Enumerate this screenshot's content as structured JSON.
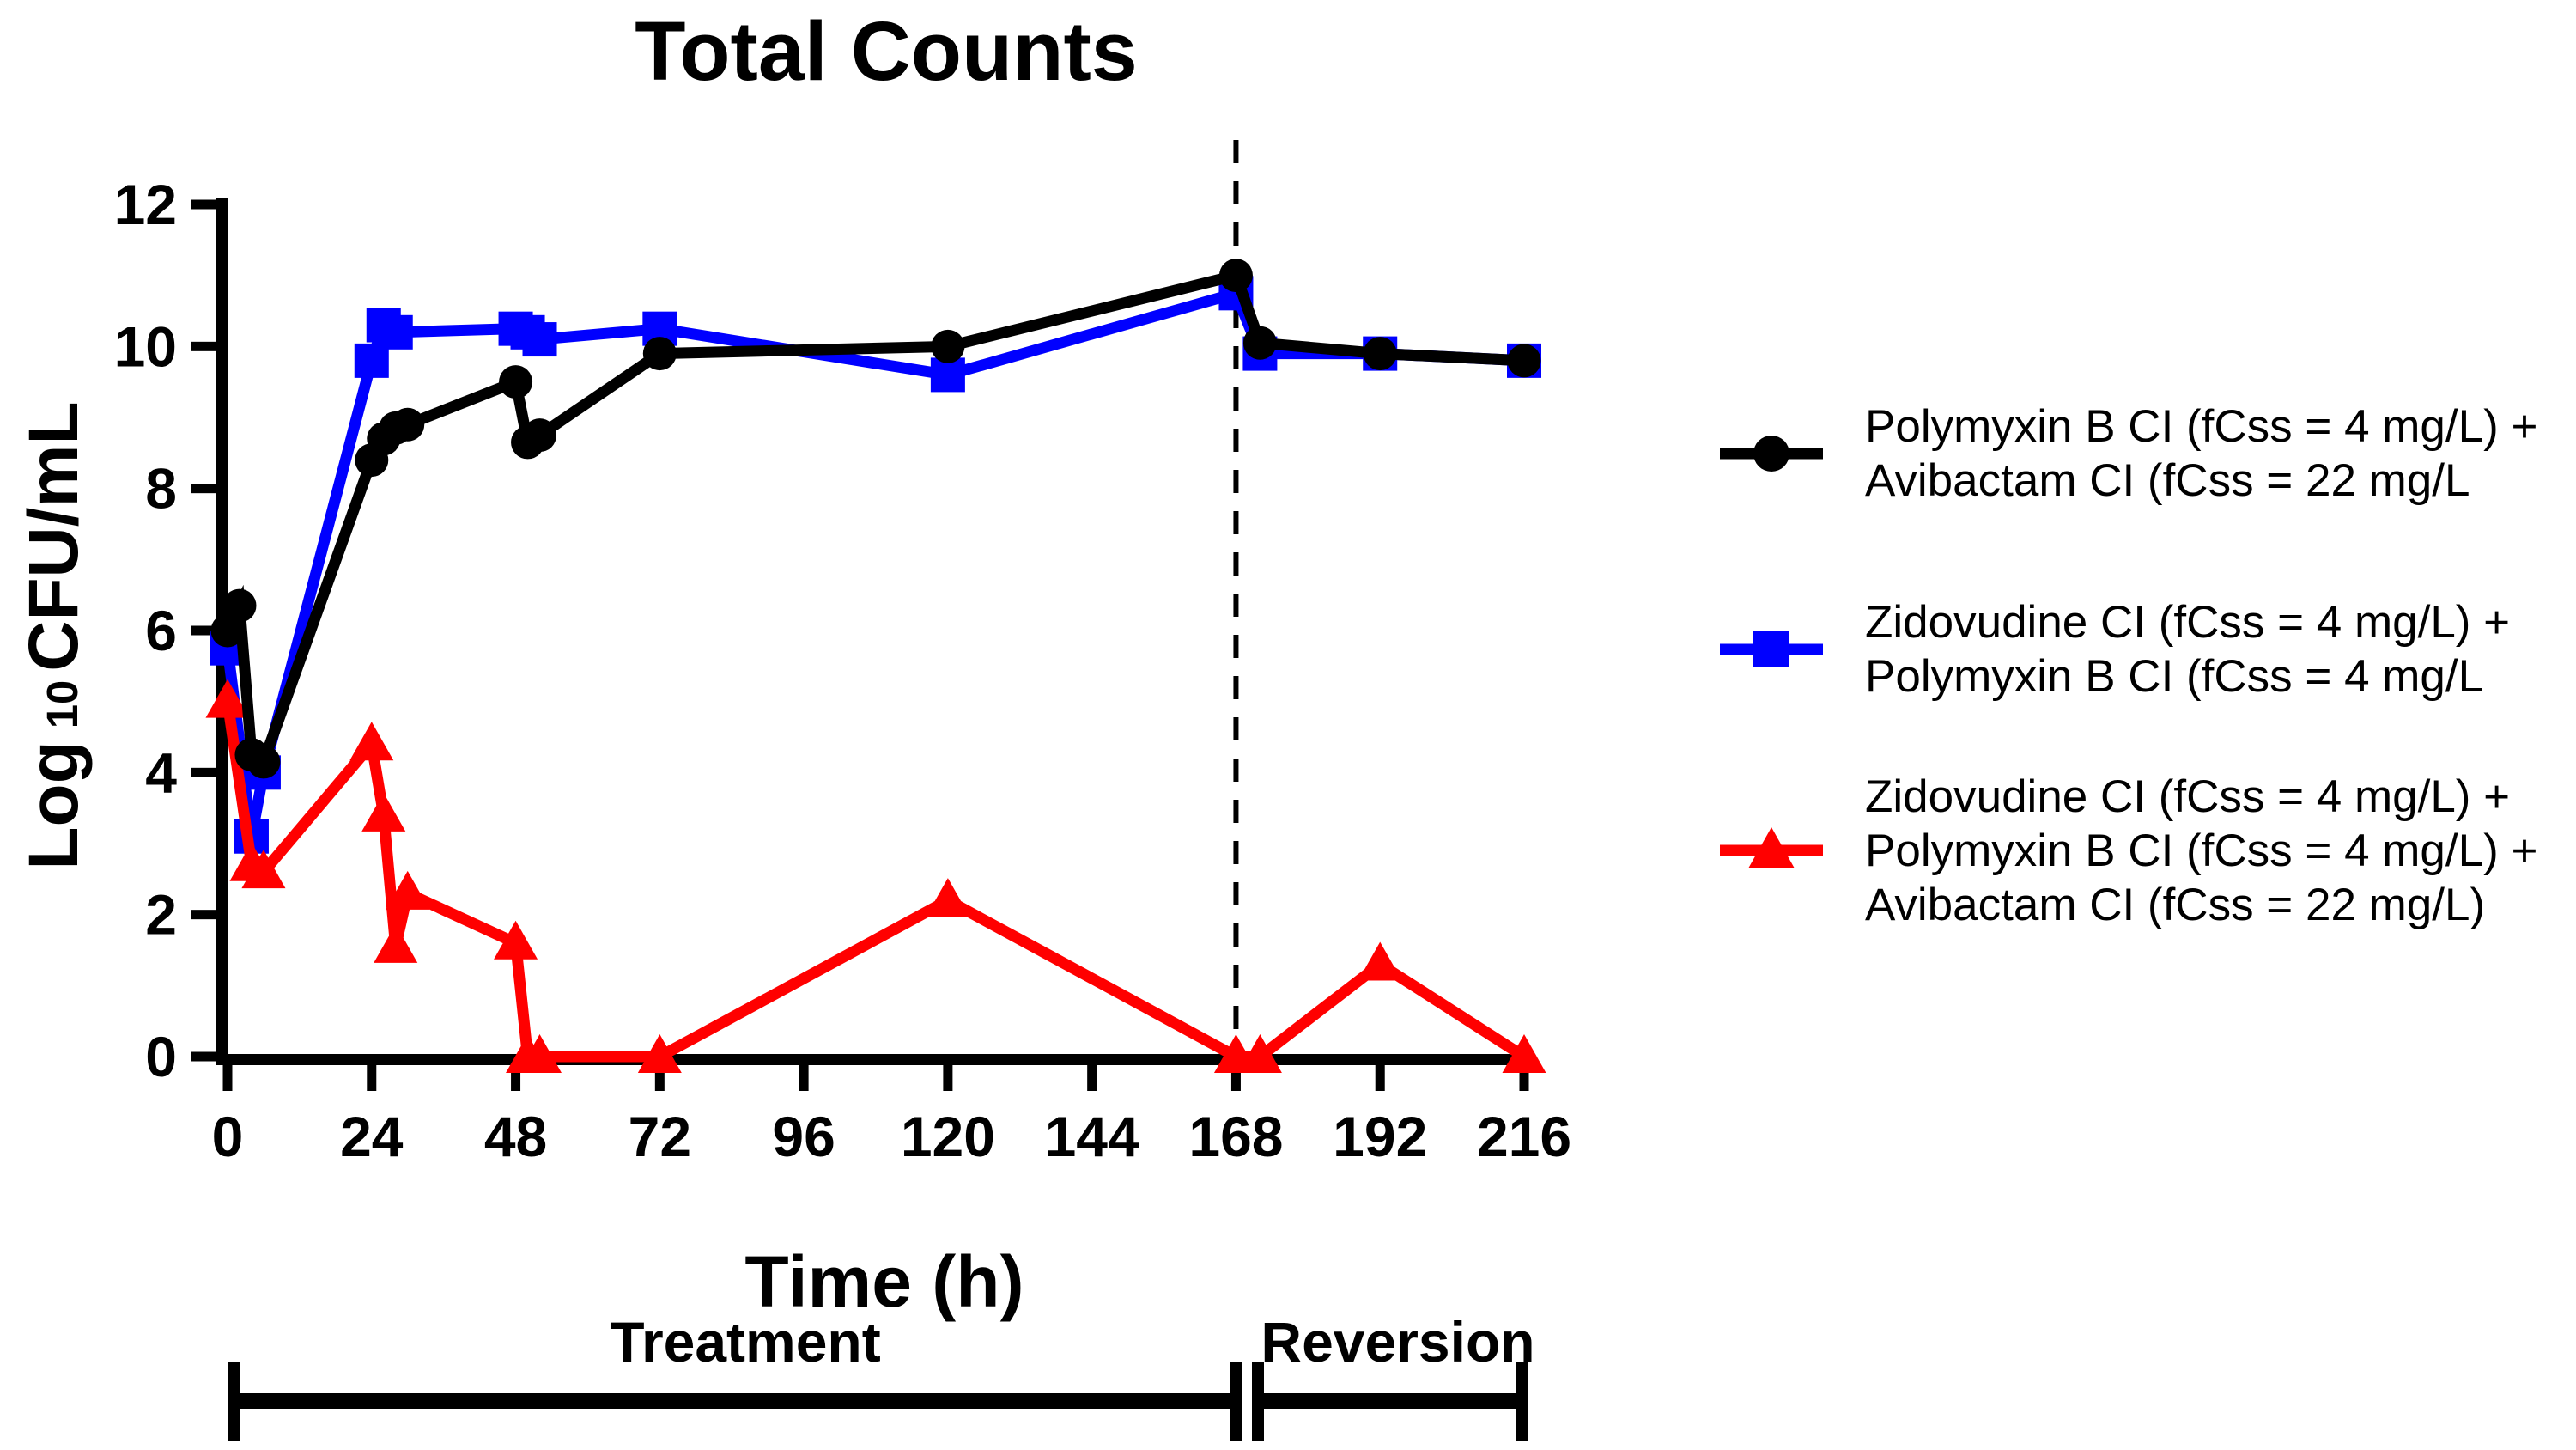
{
  "title": "Total Counts",
  "axes": {
    "x": {
      "label": "Time (h)",
      "ticks": [
        0,
        24,
        48,
        72,
        96,
        120,
        144,
        168,
        192,
        216
      ],
      "min": 0,
      "max": 216
    },
    "y": {
      "label_prefix": "Log",
      "label_sub": "10",
      "label_suffix": "CFU/mL",
      "ticks": [
        0,
        2,
        4,
        6,
        8,
        10,
        12
      ],
      "min": 0,
      "max": 12
    }
  },
  "annotations": {
    "treatment": "Treatment",
    "reversion": "Reversion",
    "divider_x": 168
  },
  "colors": {
    "black": "#000000",
    "blue": "#0000FF",
    "red": "#FF0000"
  },
  "chart_data": {
    "type": "line",
    "title": "Total Counts",
    "xlabel": "Time (h)",
    "ylabel": "Log10 CFU/mL",
    "xlim": [
      0,
      216
    ],
    "ylim": [
      0,
      12
    ],
    "grid": false,
    "legend_position": "right",
    "series": [
      {
        "name": "Polymyxin B CI (fCss = 4 mg/L) + Avibactam CI (fCss = 22 mg/L",
        "color": "#000000",
        "marker": "circle",
        "x": [
          0,
          2,
          4,
          6,
          24,
          26,
          28,
          30,
          48,
          50,
          52,
          72,
          120,
          168,
          172,
          192,
          216
        ],
        "y": [
          6.0,
          6.35,
          4.25,
          4.15,
          8.4,
          8.7,
          8.85,
          8.9,
          9.5,
          8.65,
          8.75,
          9.9,
          10.0,
          11.0,
          10.05,
          9.9,
          9.8
        ]
      },
      {
        "name": "Zidovudine CI (fCss = 4 mg/L) + Polymyxin B CI (fCss = 4 mg/L",
        "color": "#0000FF",
        "marker": "square",
        "x": [
          0,
          4,
          6,
          24,
          26,
          28,
          48,
          50,
          52,
          72,
          120,
          168,
          172,
          192,
          216
        ],
        "y": [
          5.75,
          3.1,
          4.0,
          9.8,
          10.3,
          10.2,
          10.25,
          10.2,
          10.1,
          10.25,
          9.6,
          10.75,
          9.9,
          9.9,
          9.8
        ]
      },
      {
        "name": "Zidovudine CI (fCss = 4 mg/L) + Polymyxin B CI (fCss = 4 mg/L) + Avibactam CI (fCss = 22 mg/L)",
        "color": "#FF0000",
        "marker": "triangle",
        "x": [
          0,
          4,
          6,
          24,
          26,
          28,
          30,
          48,
          50,
          52,
          72,
          120,
          168,
          172,
          192,
          216
        ],
        "y": [
          5.0,
          2.7,
          2.6,
          4.4,
          3.4,
          1.55,
          2.3,
          1.6,
          0,
          0,
          0,
          2.2,
          0,
          0,
          1.3,
          0
        ]
      }
    ]
  },
  "legend": {
    "entries": [
      {
        "marker": "circle",
        "color": "#000000",
        "lines": [
          "Polymyxin B CI (fCss = 4 mg/L) +",
          "Avibactam CI (fCss = 22 mg/L"
        ]
      },
      {
        "marker": "square",
        "color": "#0000FF",
        "lines": [
          "Zidovudine CI (fCss = 4 mg/L) +",
          "Polymyxin B CI (fCss = 4 mg/L"
        ]
      },
      {
        "marker": "triangle",
        "color": "#FF0000",
        "lines": [
          "Zidovudine CI (fCss = 4 mg/L) +",
          "Polymyxin B CI (fCss = 4 mg/L) +",
          "Avibactam CI (fCss = 22 mg/L)"
        ]
      }
    ]
  }
}
